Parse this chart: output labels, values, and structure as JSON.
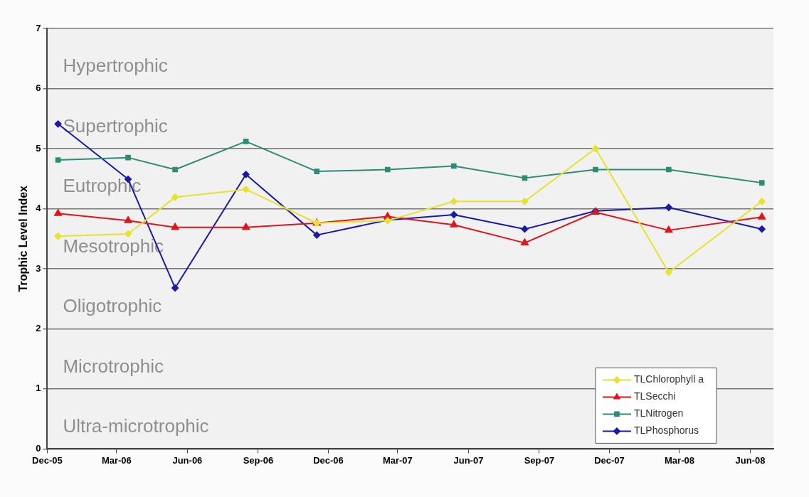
{
  "chart_data": {
    "type": "line",
    "ylabel": "Trophic Level Index",
    "x": [
      "2005-12-15",
      "2006-03-16",
      "2006-05-16",
      "2006-08-16",
      "2006-11-16",
      "2007-02-16",
      "2007-05-13",
      "2007-08-13",
      "2007-11-13",
      "2008-02-16",
      "2008-06-16"
    ],
    "series": [
      {
        "name": "TLChlorophyll a",
        "color": "#e6e22e",
        "marker": "diamond",
        "values": [
          3.54,
          3.58,
          4.19,
          4.32,
          3.76,
          3.8,
          4.12,
          4.12,
          5.0,
          2.94,
          4.12
        ]
      },
      {
        "name": "TLSecchi",
        "color": "#e0151b",
        "marker": "triangle",
        "values": [
          3.92,
          3.8,
          3.69,
          3.69,
          3.76,
          3.87,
          3.73,
          3.43,
          3.94,
          3.64,
          3.86
        ]
      },
      {
        "name": "TLNitrogen",
        "color": "#2e8b74",
        "marker": "square",
        "values": [
          4.81,
          4.85,
          4.65,
          5.12,
          4.62,
          4.65,
          4.71,
          4.51,
          4.65,
          4.65,
          4.43
        ]
      },
      {
        "name": "TLPhosphorus",
        "color": "#1a1aa8",
        "marker": "diamond",
        "values": [
          5.41,
          4.49,
          2.68,
          4.57,
          3.56,
          3.81,
          3.9,
          3.66,
          3.96,
          4.02,
          3.66
        ]
      }
    ],
    "xlim": [
      "2005-12-01",
      "2008-07-01"
    ],
    "xticks": [
      {
        "value": "2005-12-01",
        "label": "Dec-05"
      },
      {
        "value": "2006-03-01",
        "label": "Mar-06"
      },
      {
        "value": "2006-06-01",
        "label": "Jun-06"
      },
      {
        "value": "2006-09-01",
        "label": "Sep-06"
      },
      {
        "value": "2006-12-01",
        "label": "Dec-06"
      },
      {
        "value": "2007-03-01",
        "label": "Mar-07"
      },
      {
        "value": "2007-06-01",
        "label": "Jun-07"
      },
      {
        "value": "2007-09-01",
        "label": "Sep-07"
      },
      {
        "value": "2007-12-01",
        "label": "Dec-07"
      },
      {
        "value": "2008-03-01",
        "label": "Mar-08"
      },
      {
        "value": "2008-06-01",
        "label": "Jun-08"
      }
    ],
    "ylim": [
      0,
      7
    ],
    "yticks": [
      0,
      1,
      2,
      3,
      4,
      5,
      6,
      7
    ],
    "bands": [
      {
        "axis": "y",
        "from": 6,
        "to": 7,
        "label": "Hypertrophic",
        "color": "#f1f1f1"
      },
      {
        "axis": "y",
        "from": 5,
        "to": 6,
        "label": "Supertrophic",
        "color": "#f1f1f1"
      },
      {
        "axis": "y",
        "from": 4,
        "to": 5,
        "label": "Eutrophic",
        "color": "#f1f1f1"
      },
      {
        "axis": "y",
        "from": 3,
        "to": 4,
        "label": "Mesotrophic",
        "color": "#f1f1f1"
      },
      {
        "axis": "y",
        "from": 2,
        "to": 3,
        "label": "Oligotrophic",
        "color": "#f1f1f1"
      },
      {
        "axis": "y",
        "from": 1,
        "to": 2,
        "label": "Microtrophic",
        "color": "#f1f1f1"
      },
      {
        "axis": "y",
        "from": 0,
        "to": 1,
        "label": "Ultra-microtrophic",
        "color": "#f1f1f1"
      }
    ],
    "grid": "y",
    "legend": "bottom right",
    "line_style": "solid"
  }
}
